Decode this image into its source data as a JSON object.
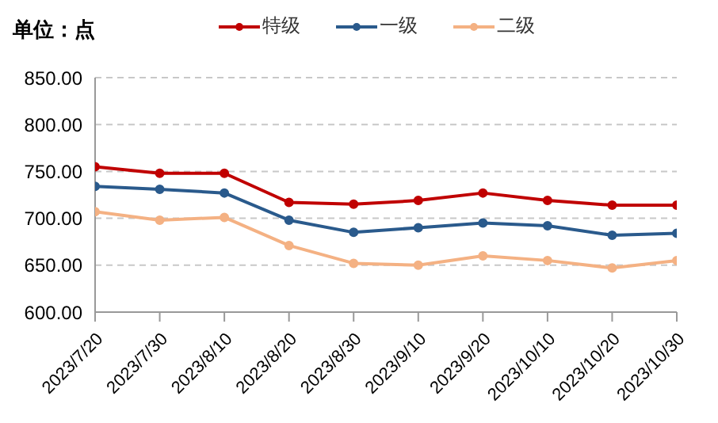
{
  "chart_data": {
    "type": "line",
    "title": "单位：点",
    "categories": [
      "2023/7/20",
      "2023/7/30",
      "2023/8/10",
      "2023/8/20",
      "2023/8/30",
      "2023/9/10",
      "2023/9/20",
      "2023/10/10",
      "2023/10/20",
      "2023/10/30"
    ],
    "series": [
      {
        "name": "特级",
        "color": "#c00000",
        "values": [
          755,
          748,
          748,
          717,
          715,
          719,
          727,
          719,
          714,
          714
        ]
      },
      {
        "name": "一级",
        "color": "#2a5a8c",
        "values": [
          734,
          731,
          727,
          698,
          685,
          690,
          695,
          692,
          682,
          684
        ]
      },
      {
        "name": "二级",
        "color": "#f4b183",
        "values": [
          707,
          698,
          701,
          671,
          652,
          650,
          660,
          655,
          647,
          655
        ]
      }
    ],
    "ylim": [
      600,
      850
    ],
    "yticks": [
      {
        "value": 600,
        "label": "600.00"
      },
      {
        "value": 650,
        "label": "650.00"
      },
      {
        "value": 700,
        "label": "700.00"
      },
      {
        "value": 750,
        "label": "750.00"
      },
      {
        "value": 800,
        "label": "800.00"
      },
      {
        "value": 850,
        "label": "850.00"
      }
    ],
    "grid": "y",
    "legend": "top",
    "marker": "circle",
    "line_style": "solid"
  }
}
